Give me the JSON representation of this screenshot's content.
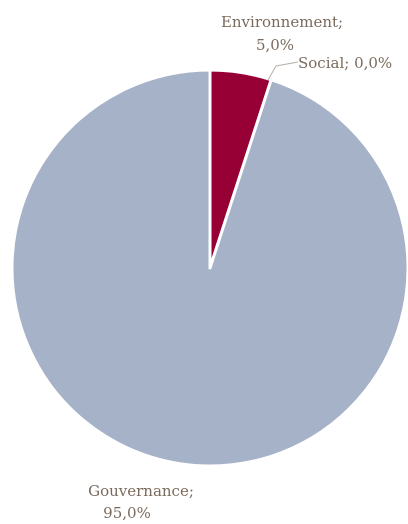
{
  "chart_data": {
    "type": "pie",
    "title": "",
    "slices": [
      {
        "name": "Environnement",
        "value": 5.0,
        "label_line1": "Environnement;",
        "label_line2": "5,0%",
        "color": "#960035"
      },
      {
        "name": "Social",
        "value": 0.0,
        "label_line1": "Social; 0,0%",
        "label_line2": "",
        "color": "#c7a78a"
      },
      {
        "name": "Gouvernance",
        "value": 95.0,
        "label_line1": "Gouvernance;",
        "label_line2": "95,0%",
        "color": "#a6b2c8"
      }
    ],
    "start_angle_deg": 0,
    "direction": "clockwise",
    "legend": "none"
  }
}
